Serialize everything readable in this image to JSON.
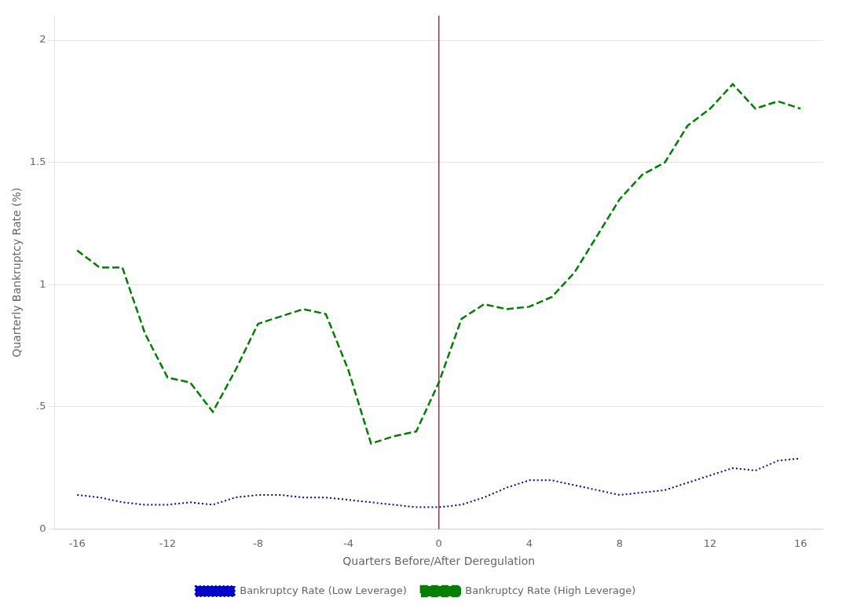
{
  "chart_data": {
    "type": "line",
    "xlabel": "Quarters Before/After Deregulation",
    "ylabel": "Quarterly Bankruptcy Rate (%)",
    "x": [
      -16,
      -15,
      -14,
      -13,
      -12,
      -11,
      -10,
      -9,
      -8,
      -7,
      -6,
      -5,
      -4,
      -3,
      -2,
      -1,
      0,
      1,
      2,
      3,
      4,
      5,
      6,
      7,
      8,
      9,
      10,
      11,
      12,
      13,
      14,
      15,
      16
    ],
    "series": [
      {
        "name": "Bankruptcy Rate (Low Leverage)",
        "color": "#0000CD",
        "line_style": "dotted",
        "marker": "none",
        "values": [
          0.14,
          0.13,
          0.11,
          0.1,
          0.1,
          0.11,
          0.1,
          0.13,
          0.14,
          0.14,
          0.13,
          0.13,
          0.12,
          0.11,
          0.1,
          0.09,
          0.09,
          0.1,
          0.13,
          0.17,
          0.2,
          0.2,
          0.18,
          0.16,
          0.14,
          0.15,
          0.16,
          0.19,
          0.22,
          0.25,
          0.24,
          0.28,
          0.29
        ]
      },
      {
        "name": "Bankruptcy Rate (High Leverage)",
        "color": "#008000",
        "line_style": "dashed",
        "marker": "none",
        "values": [
          1.14,
          1.07,
          1.07,
          0.8,
          0.62,
          0.6,
          0.48,
          0.65,
          0.84,
          0.87,
          0.9,
          0.88,
          0.65,
          0.35,
          0.38,
          0.4,
          0.6,
          0.86,
          0.92,
          0.9,
          0.91,
          0.95,
          1.05,
          1.2,
          1.35,
          1.45,
          1.5,
          1.65,
          1.72,
          1.82,
          1.72,
          1.75,
          1.72
        ]
      }
    ],
    "xlim": [
      -17,
      17
    ],
    "xticks": [
      -16,
      -12,
      -8,
      -4,
      0,
      4,
      8,
      12,
      16
    ],
    "ylim": [
      0,
      2.1
    ],
    "yticks": [
      0,
      {
        "value": 0.5,
        "label": ".5"
      },
      1,
      1.5,
      2
    ],
    "grid": "y",
    "legend": "bottom",
    "vline": {
      "x": 0,
      "color": "#8B3A4A"
    }
  }
}
